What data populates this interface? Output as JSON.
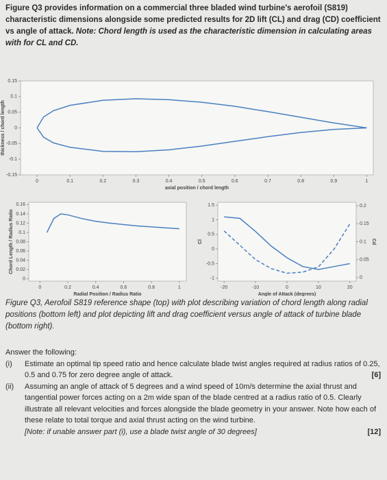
{
  "intro": {
    "text": "Figure Q3 provides information on a commercial three bladed wind turbine's aerofoil (S819) characteristic dimensions alongside some predicted results for 2D lift (CL) and drag (CD) coefficient vs angle of attack.",
    "note": "Note: Chord length is used as the characteristic dimension in calculating areas with for CL and CD."
  },
  "caption": "Figure Q3, Aerofoil S819 reference shape (top) with plot describing variation of chord length along radial positions (bottom left) and plot depicting lift and drag coefficient versus angle of attack of turbine blade (bottom right).",
  "questions": {
    "heading": "Answer the following:",
    "items": [
      {
        "label": "(i)",
        "text": "Estimate an optimal tip speed ratio and hence calculate blade twist angles required at radius ratios of 0.25, 0.5 and 0.75 for zero degree angle of attack.",
        "marks": "[6]"
      },
      {
        "label": "(ii)",
        "text": "Assuming an angle of attack of 5 degrees and a wind speed of 10m/s determine the axial thrust and tangential power forces acting on a 2m wide span of the blade centred at a radius ratio of 0.5. Clearly illustrate all relevant velocities and forces alongside the blade geometry in your answer. Note how each of these relate to total torque and axial thrust acting on the wind turbine.",
        "note": "[Note: if unable answer part (i), use a blade twist angle of 30 degrees]",
        "marks": "[12]"
      }
    ]
  },
  "chart_data": [
    {
      "type": "line",
      "xlabel": "axial position / chord length",
      "ylabel": "thickness / chord length",
      "x": [
        0,
        0.02,
        0.05,
        0.1,
        0.2,
        0.3,
        0.4,
        0.5,
        0.6,
        0.7,
        0.8,
        0.9,
        1
      ],
      "series": [
        {
          "name": "upper surface",
          "color": "#4a7fc1",
          "values": [
            0,
            0.035,
            0.055,
            0.072,
            0.088,
            0.093,
            0.09,
            0.082,
            0.069,
            0.052,
            0.034,
            0.016,
            0
          ]
        },
        {
          "name": "lower surface",
          "color": "#4a7fc1",
          "values": [
            0,
            -0.03,
            -0.048,
            -0.062,
            -0.075,
            -0.076,
            -0.07,
            -0.058,
            -0.043,
            -0.028,
            -0.015,
            -0.005,
            0
          ]
        }
      ],
      "xlim": [
        -0.05,
        1.02
      ],
      "ylim": [
        -0.15,
        0.15
      ],
      "xticks": [
        0,
        0.1,
        0.2,
        0.3,
        0.4,
        0.5,
        0.6,
        0.7,
        0.8,
        0.9,
        1
      ],
      "yticks": [
        -0.15,
        -0.1,
        -0.05,
        0,
        0.05,
        0.1,
        0.15
      ]
    },
    {
      "type": "line",
      "xlabel": "Radial Position / Radius Ratio",
      "ylabel": "Chord Length / Radius Ratio",
      "x": [
        0.05,
        0.1,
        0.15,
        0.2,
        0.3,
        0.4,
        0.5,
        0.6,
        0.7,
        0.8,
        0.9,
        1
      ],
      "series": [
        {
          "name": "chord",
          "color": "#4a7fc1",
          "values": [
            0.1,
            0.13,
            0.14,
            0.138,
            0.13,
            0.124,
            0.12,
            0.117,
            0.114,
            0.112,
            0.11,
            0.108
          ]
        }
      ],
      "xlim": [
        -0.08,
        1.05
      ],
      "ylim": [
        -0.005,
        0.165
      ],
      "xticks": [
        0,
        0.2,
        0.4,
        0.6,
        0.8,
        1
      ],
      "yticks": [
        0,
        0.02,
        0.04,
        0.06,
        0.08,
        0.1,
        0.12,
        0.14,
        0.16
      ]
    },
    {
      "type": "line",
      "xlabel": "Angle of Attack (degrees)",
      "ylabel": "Cl",
      "y2label": "Cd",
      "legend": "bottom",
      "x": [
        -20,
        -15,
        -10,
        -5,
        0,
        5,
        10,
        15,
        20
      ],
      "series": [
        {
          "name": "Cl",
          "color": "#4a7fc1",
          "values": [
            1.1,
            1.05,
            0.6,
            0.1,
            -0.3,
            -0.6,
            -0.7,
            -0.6,
            -0.5
          ]
        },
        {
          "name": "Cd",
          "color": "#4a7fc1",
          "dash": true,
          "axis": "y2",
          "values": [
            0.13,
            0.09,
            0.05,
            0.025,
            0.012,
            0.015,
            0.03,
            0.08,
            0.15
          ]
        }
      ],
      "xlim": [
        -22,
        22
      ],
      "ylim": [
        -1.1,
        1.6
      ],
      "y2lim": [
        -0.01,
        0.21
      ],
      "xticks": [
        -20,
        -10,
        0,
        10,
        20
      ],
      "yticks": [
        -1,
        -0.5,
        0,
        0.5,
        1,
        1.5
      ],
      "y2ticks": [
        0,
        0.05,
        0.1,
        0.15,
        0.2
      ]
    }
  ]
}
